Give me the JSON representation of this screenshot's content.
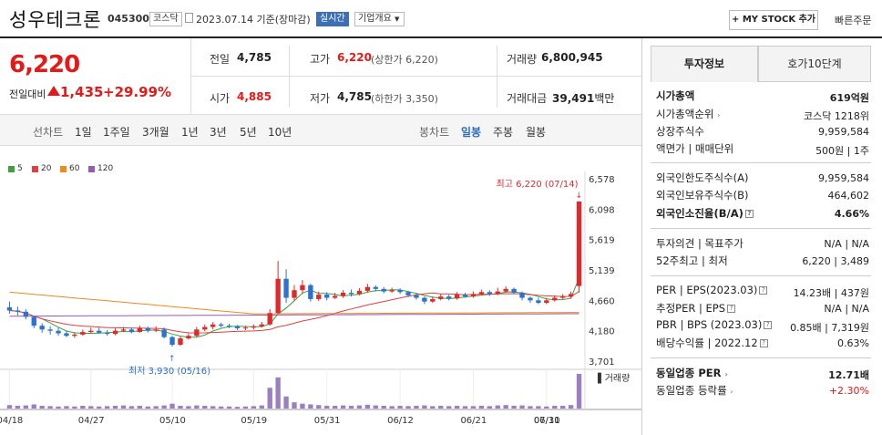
{
  "header": {
    "name": "성우테크론",
    "code": "045300",
    "market_badge": "코스닥",
    "date": "2023.07.14",
    "basis": "기준(장마감)",
    "live_badge": "실시간",
    "overview_btn": "기업개요",
    "mystock_btn": "+ MY STOCK 추가",
    "quick_order": "빠른주문"
  },
  "price": {
    "current": "6,220",
    "change_label": "전일대비",
    "change": "1,435",
    "change_pct": "+29.99%"
  },
  "quote": {
    "prev_label": "전일",
    "prev": "4,785",
    "high_label": "고가",
    "high": "6,220",
    "high_limit": "(상한가 6,220)",
    "volume_label": "거래량",
    "volume": "6,800,945",
    "open_label": "시가",
    "open": "4,885",
    "low_label": "저가",
    "low": "4,785",
    "low_limit": "(하한가 3,350)",
    "amount_label": "거래대금",
    "amount": "39,491",
    "amount_unit": "백만"
  },
  "periods": {
    "line_label": "선차트",
    "line": [
      "1일",
      "1주일",
      "3개월",
      "1년",
      "3년",
      "5년",
      "10년"
    ],
    "candle_label": "봉차트",
    "candle": [
      "일봉",
      "주봉",
      "월봉"
    ],
    "selected": "일봉"
  },
  "chart_data": {
    "type": "candlestick",
    "legend": [
      {
        "name": "5",
        "color": "#3aa33a"
      },
      {
        "name": "20",
        "color": "#e04040"
      },
      {
        "name": "60",
        "color": "#f08a1c"
      },
      {
        "name": "120",
        "color": "#9b59b6"
      }
    ],
    "y_ticks": [
      "6,578",
      "6,098",
      "5,619",
      "5,139",
      "4,660",
      "4,180",
      "3,701"
    ],
    "ylim": [
      3701,
      6578
    ],
    "x_ticks": [
      "04/18",
      "04/27",
      "05/10",
      "05/19",
      "05/31",
      "06/12",
      "06/21",
      "06/30",
      "07/11"
    ],
    "max_annot": "최고 6,220 (07/14)",
    "min_annot": "최저 3,930 (05/16)",
    "volume_label": "▌거래량",
    "candles": [
      [
        4550,
        4500,
        4640,
        4450
      ],
      [
        4500,
        4480,
        4560,
        4420
      ],
      [
        4480,
        4400,
        4520,
        4360
      ],
      [
        4400,
        4260,
        4420,
        4220
      ],
      [
        4260,
        4200,
        4300,
        4150
      ],
      [
        4200,
        4180,
        4250,
        4120
      ],
      [
        4180,
        4140,
        4230,
        4100
      ],
      [
        4140,
        4100,
        4180,
        4080
      ],
      [
        4100,
        4120,
        4150,
        4070
      ],
      [
        4120,
        4160,
        4200,
        4100
      ],
      [
        4160,
        4180,
        4230,
        4140
      ],
      [
        4180,
        4150,
        4230,
        4130
      ],
      [
        4150,
        4130,
        4190,
        4100
      ],
      [
        4130,
        4180,
        4220,
        4110
      ],
      [
        4180,
        4200,
        4240,
        4160
      ],
      [
        4200,
        4160,
        4230,
        4140
      ],
      [
        4160,
        4220,
        4260,
        4150
      ],
      [
        4220,
        4180,
        4250,
        4150
      ],
      [
        4180,
        4200,
        4250,
        4160
      ],
      [
        4200,
        4080,
        4230,
        4060
      ],
      [
        4080,
        3960,
        4100,
        3930
      ],
      [
        3960,
        4060,
        4090,
        3940
      ],
      [
        4060,
        4100,
        4140,
        4040
      ],
      [
        4100,
        4200,
        4240,
        4080
      ],
      [
        4200,
        4240,
        4280,
        4170
      ],
      [
        4240,
        4280,
        4320,
        4200
      ],
      [
        4280,
        4260,
        4310,
        4230
      ],
      [
        4260,
        4250,
        4290,
        4220
      ],
      [
        4250,
        4220,
        4270,
        4190
      ],
      [
        4220,
        4230,
        4260,
        4190
      ],
      [
        4230,
        4250,
        4280,
        4200
      ],
      [
        4250,
        4280,
        4320,
        4230
      ],
      [
        4280,
        4460,
        4520,
        4260
      ],
      [
        4460,
        5000,
        5280,
        4450
      ],
      [
        5000,
        4700,
        5150,
        4620
      ],
      [
        4700,
        4820,
        4900,
        4650
      ],
      [
        4820,
        4900,
        4980,
        4760
      ],
      [
        4900,
        4680,
        4920,
        4640
      ],
      [
        4680,
        4750,
        4800,
        4650
      ],
      [
        4750,
        4700,
        4790,
        4660
      ],
      [
        4700,
        4730,
        4780,
        4680
      ],
      [
        4730,
        4780,
        4820,
        4700
      ],
      [
        4780,
        4760,
        4830,
        4720
      ],
      [
        4760,
        4810,
        4850,
        4740
      ],
      [
        4810,
        4870,
        4920,
        4780
      ],
      [
        4870,
        4840,
        4900,
        4800
      ],
      [
        4840,
        4800,
        4870,
        4770
      ],
      [
        4800,
        4820,
        4860,
        4780
      ],
      [
        4820,
        4790,
        4850,
        4760
      ],
      [
        4790,
        4740,
        4810,
        4710
      ],
      [
        4740,
        4700,
        4770,
        4670
      ],
      [
        4700,
        4640,
        4720,
        4600
      ],
      [
        4640,
        4680,
        4720,
        4620
      ],
      [
        4680,
        4720,
        4760,
        4660
      ],
      [
        4720,
        4690,
        4750,
        4660
      ],
      [
        4690,
        4750,
        4790,
        4670
      ],
      [
        4750,
        4720,
        4780,
        4700
      ],
      [
        4720,
        4760,
        4800,
        4700
      ],
      [
        4760,
        4790,
        4830,
        4740
      ],
      [
        4790,
        4760,
        4820,
        4730
      ],
      [
        4760,
        4800,
        4860,
        4740
      ],
      [
        4800,
        4840,
        4880,
        4780
      ],
      [
        4840,
        4780,
        4860,
        4760
      ],
      [
        4780,
        4700,
        4800,
        4660
      ],
      [
        4700,
        4660,
        4720,
        4620
      ],
      [
        4660,
        4620,
        4700,
        4600
      ],
      [
        4620,
        4660,
        4700,
        4600
      ],
      [
        4660,
        4700,
        4740,
        4640
      ],
      [
        4700,
        4720,
        4760,
        4680
      ],
      [
        4720,
        4760,
        4800,
        4690
      ],
      [
        4885,
        6220,
        6220,
        4785
      ]
    ],
    "volumes": [
      10,
      8,
      9,
      12,
      8,
      7,
      6,
      7,
      6,
      8,
      7,
      6,
      7,
      8,
      9,
      7,
      8,
      6,
      7,
      9,
      14,
      8,
      7,
      9,
      8,
      7,
      6,
      6,
      5,
      6,
      7,
      9,
      60,
      90,
      35,
      18,
      14,
      12,
      10,
      8,
      8,
      9,
      8,
      9,
      11,
      9,
      8,
      7,
      8,
      7,
      8,
      9,
      7,
      8,
      7,
      8,
      7,
      7,
      8,
      7,
      9,
      10,
      8,
      9,
      7,
      7,
      6,
      8,
      8,
      10,
      100
    ]
  },
  "tabs": {
    "invest": "투자정보",
    "orderbook": "호가10단계"
  },
  "info": {
    "mcap_l": "시가총액",
    "mcap": "619억원",
    "rank_l": "시가총액순위",
    "rank": "코스닥 1218위",
    "shares_l": "상장주식수",
    "shares": "9,959,584",
    "face_l": "액면가 | 매매단위",
    "face": "500원 | 1주",
    "foreign_limit_l": "외국인한도주식수(A)",
    "foreign_limit": "9,959,584",
    "foreign_hold_l": "외국인보유주식수(B)",
    "foreign_hold": "464,602",
    "foreign_ratio_l": "외국인소진율(B/A)",
    "foreign_ratio": "4.66%",
    "opinion_l": "투자의견 | 목표주가",
    "opinion": "N/A | N/A",
    "wk52_l": "52주최고 | 최저",
    "wk52": "6,220 | 3,489",
    "per_l": "PER | EPS(2023.03)",
    "per": "14.23배 | 437원",
    "est_l": "추정PER | EPS",
    "est": "N/A | N/A",
    "pbr_l": "PBR | BPS (2023.03)",
    "pbr": "0.85배 | 7,319원",
    "div_l": "배당수익률 | 2022.12",
    "div": "0.63%",
    "sector_per_l": "동일업종 PER",
    "sector_per": "12.71배",
    "sector_chg_l": "동일업종 등락률",
    "sector_chg": "+2.30%"
  }
}
